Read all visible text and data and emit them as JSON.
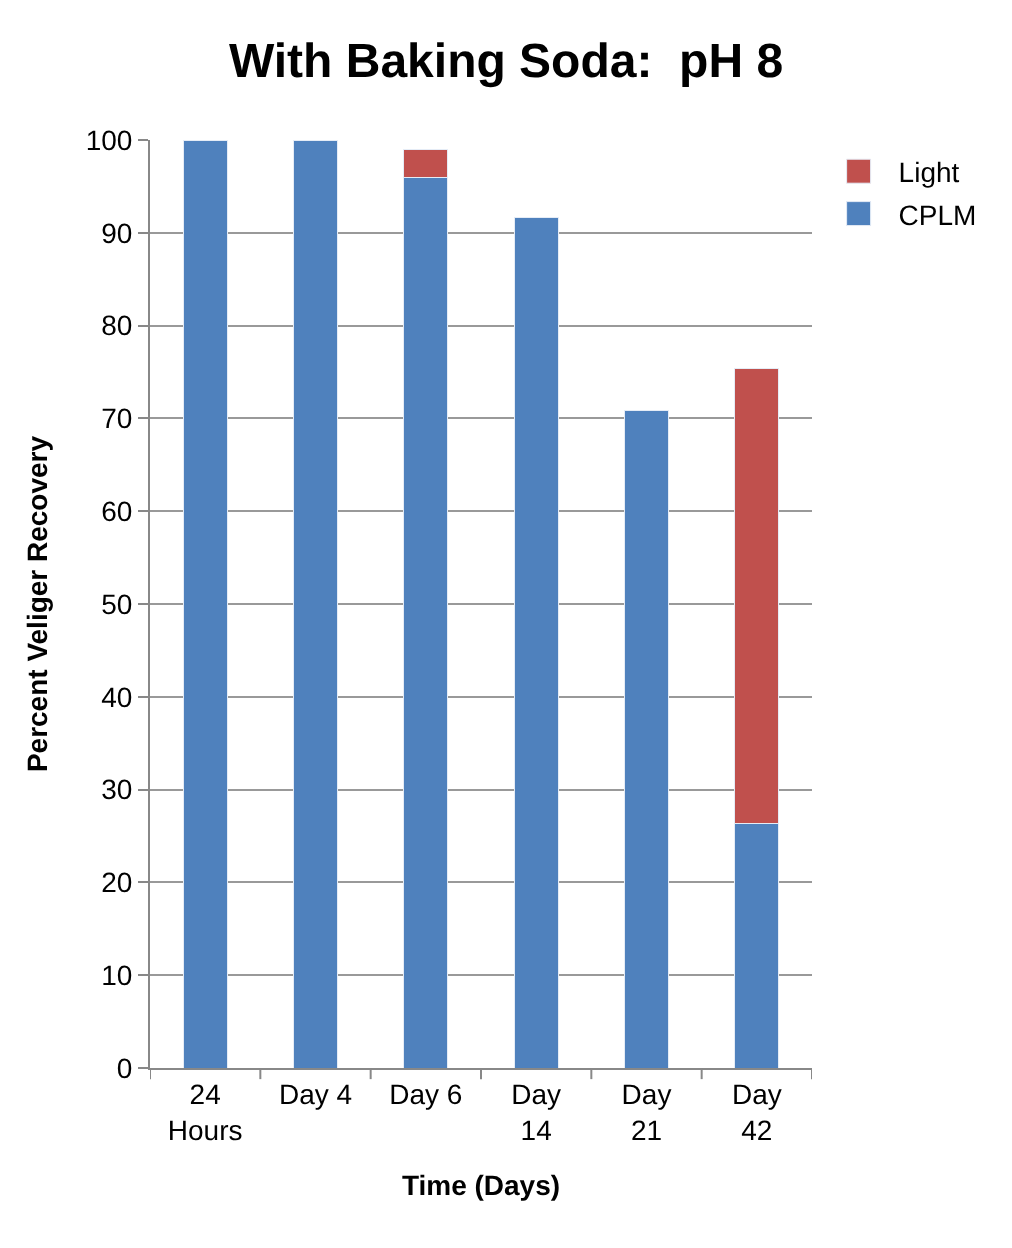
{
  "chart_data": {
    "type": "bar",
    "title": "With Baking Soda:  pH 8",
    "xlabel": "Time (Days)",
    "ylabel": "Percent Veliger Recovery",
    "categories": [
      "24\nHours",
      "Day 4",
      "Day 6",
      "Day\n14",
      "Day\n21",
      "Day\n42"
    ],
    "stacked": true,
    "series": [
      {
        "name": "CPLM",
        "color": "#4f81bd",
        "values": [
          100,
          100,
          96,
          91.6,
          70.9,
          26.4
        ]
      },
      {
        "name": "Light",
        "color": "#c0504d",
        "values": [
          null,
          null,
          3,
          null,
          null,
          49
        ]
      }
    ],
    "ylim": [
      0,
      100
    ],
    "yticks": [
      0,
      10,
      20,
      30,
      40,
      50,
      60,
      70,
      80,
      90,
      100
    ],
    "grid": "y",
    "legend": "top right"
  }
}
